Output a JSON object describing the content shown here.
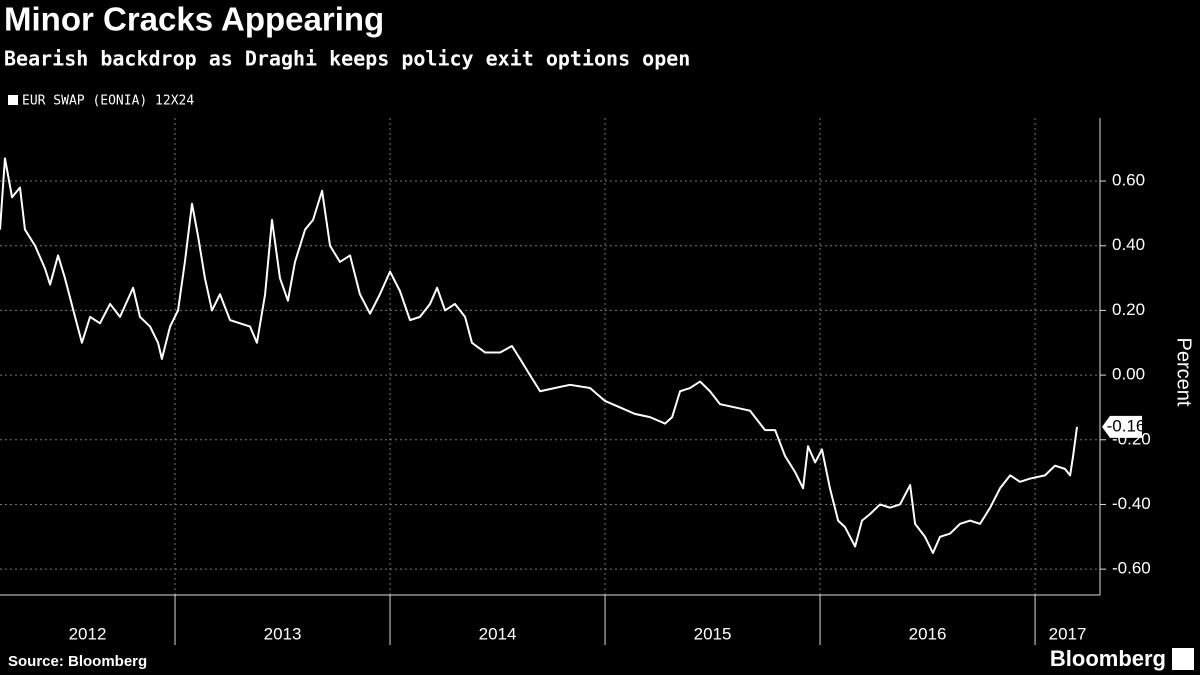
{
  "chart_data": {
    "type": "line",
    "title": "Minor Cracks Appearing",
    "subtitle": "Bearish backdrop as Draghi keeps policy exit options open",
    "y_label": "Percent",
    "source": "Source: Bloomberg",
    "brand": "Bloomberg",
    "grid": true,
    "xlim": [
      2012.186,
      2017.302
    ],
    "xticks": [
      2012,
      2013,
      2014,
      2015,
      2016,
      2017
    ],
    "ylim": [
      -0.68,
      0.795
    ],
    "yticks": [
      {
        "value": -0.6,
        "label": "-0.60"
      },
      {
        "value": -0.4,
        "label": "-0.40"
      },
      {
        "value": -0.2,
        "label": "-0.20"
      },
      {
        "value": 0,
        "label": "0.00"
      },
      {
        "value": 0.2,
        "label": "0.20"
      },
      {
        "value": 0.4,
        "label": "0.40"
      },
      {
        "value": 0.6,
        "label": "0.60"
      }
    ],
    "x": [
      2012.186,
      2012.209,
      2012.242,
      2012.279,
      2012.302,
      2012.349,
      2012.395,
      2012.419,
      2012.456,
      2012.488,
      2012.535,
      2012.567,
      2012.605,
      2012.651,
      2012.698,
      2012.744,
      2012.805,
      2012.837,
      2012.884,
      2012.921,
      2012.939,
      2012.977,
      2013.014,
      2013.046,
      2013.079,
      2013.107,
      2013.139,
      2013.172,
      2013.209,
      2013.256,
      2013.302,
      2013.349,
      2013.381,
      2013.419,
      2013.451,
      2013.488,
      2013.525,
      2013.558,
      2013.605,
      2013.642,
      2013.684,
      2013.721,
      2013.767,
      2013.814,
      2013.86,
      2013.907,
      2013.953,
      2014.0,
      2014.046,
      2014.093,
      2014.139,
      2014.186,
      2014.219,
      2014.256,
      2014.302,
      2014.349,
      2014.381,
      2014.442,
      2014.512,
      2014.567,
      2014.605,
      2014.651,
      2014.698,
      2014.767,
      2014.837,
      2014.93,
      2015.0,
      2015.07,
      2015.139,
      2015.209,
      2015.279,
      2015.312,
      2015.349,
      2015.395,
      2015.442,
      2015.488,
      2015.535,
      2015.605,
      2015.674,
      2015.744,
      2015.791,
      2015.837,
      2015.884,
      2015.921,
      2015.944,
      2015.977,
      2016.009,
      2016.046,
      2016.084,
      2016.116,
      2016.163,
      2016.195,
      2016.232,
      2016.279,
      2016.325,
      2016.372,
      2016.419,
      2016.442,
      2016.488,
      2016.525,
      2016.558,
      2016.605,
      2016.651,
      2016.698,
      2016.744,
      2016.791,
      2016.837,
      2016.884,
      2016.93,
      2016.977,
      2017.046,
      2017.093,
      2017.139,
      2017.163,
      2017.177,
      2017.195
    ],
    "series": [
      {
        "name": "EUR SWAP (EONIA) 12X24",
        "color": "#ffffff",
        "last_label": "-0.16",
        "values": [
          0.45,
          0.67,
          0.55,
          0.58,
          0.45,
          0.4,
          0.33,
          0.28,
          0.37,
          0.3,
          0.18,
          0.1,
          0.18,
          0.16,
          0.22,
          0.18,
          0.27,
          0.18,
          0.15,
          0.1,
          0.05,
          0.15,
          0.2,
          0.35,
          0.53,
          0.43,
          0.3,
          0.2,
          0.25,
          0.17,
          0.16,
          0.15,
          0.1,
          0.25,
          0.48,
          0.3,
          0.23,
          0.35,
          0.45,
          0.48,
          0.57,
          0.4,
          0.35,
          0.37,
          0.25,
          0.19,
          0.25,
          0.32,
          0.26,
          0.17,
          0.18,
          0.22,
          0.27,
          0.2,
          0.22,
          0.18,
          0.1,
          0.07,
          0.07,
          0.09,
          0.05,
          0.0,
          -0.05,
          -0.04,
          -0.03,
          -0.04,
          -0.08,
          -0.1,
          -0.12,
          -0.13,
          -0.15,
          -0.13,
          -0.05,
          -0.04,
          -0.02,
          -0.05,
          -0.09,
          -0.1,
          -0.11,
          -0.17,
          -0.17,
          -0.25,
          -0.3,
          -0.35,
          -0.22,
          -0.27,
          -0.23,
          -0.35,
          -0.45,
          -0.47,
          -0.53,
          -0.45,
          -0.43,
          -0.4,
          -0.41,
          -0.4,
          -0.34,
          -0.46,
          -0.5,
          -0.55,
          -0.5,
          -0.49,
          -0.46,
          -0.45,
          -0.46,
          -0.41,
          -0.35,
          -0.31,
          -0.33,
          -0.32,
          -0.31,
          -0.28,
          -0.29,
          -0.31,
          -0.25,
          -0.16
        ]
      }
    ]
  }
}
